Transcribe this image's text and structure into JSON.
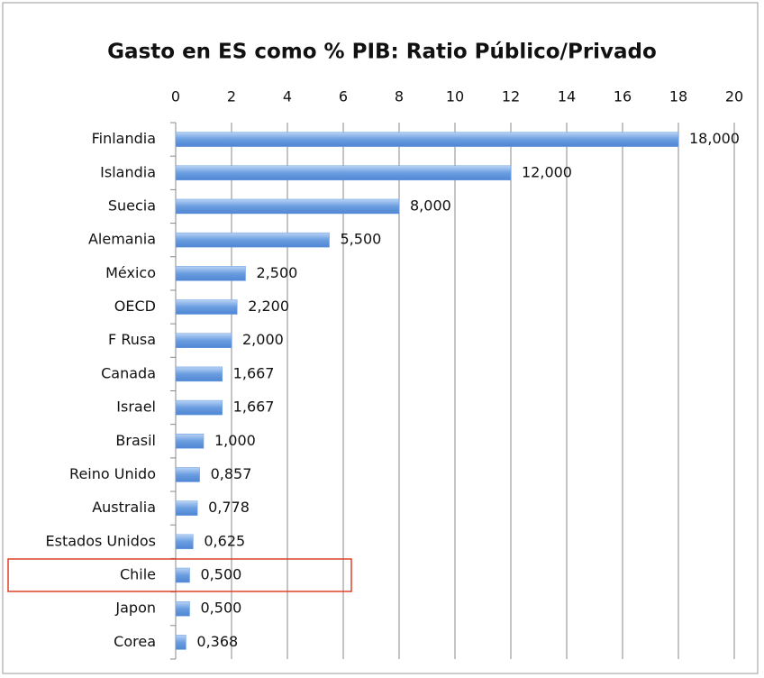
{
  "chart_data": {
    "type": "bar",
    "orientation": "horizontal",
    "title": "Gasto en ES como % PIB: Ratio Público/Privado",
    "categories": [
      "Finlandia",
      "Islandia",
      "Suecia",
      "Alemania",
      "México",
      "OECD",
      "F Rusa",
      "Canada",
      "Israel",
      "Brasil",
      "Reino Unido",
      "Australia",
      "Estados Unidos",
      "Chile",
      "Japon",
      "Corea"
    ],
    "values": [
      18,
      12,
      8,
      5.5,
      2.5,
      2.2,
      2,
      1.667,
      1.667,
      1,
      0.857,
      0.778,
      0.625,
      0.5,
      0.5,
      0.368
    ],
    "value_labels": [
      "18,000",
      "12,000",
      "8,000",
      "5,500",
      "2,500",
      "2,200",
      "2,000",
      "1,667",
      "1,667",
      "1,000",
      "0,857",
      "0,778",
      "0,625",
      "0,500",
      "0,500",
      "0,368"
    ],
    "color": "#6a9de0",
    "xlim": [
      0,
      20
    ],
    "xticks": [
      0,
      2,
      4,
      6,
      8,
      10,
      12,
      14,
      16,
      18,
      20
    ],
    "grid": true
  }
}
